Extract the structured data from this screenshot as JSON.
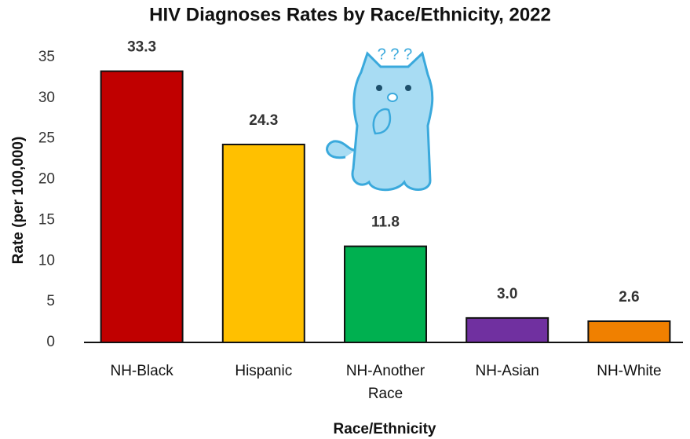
{
  "chart_data": {
    "type": "bar",
    "title": "HIV Diagnoses Rates by Race/Ethnicity, 2022",
    "x_label": "Race/Ethnicity",
    "y_label": "Rate (per 100,000)",
    "categories": [
      "NH-Black",
      "Hispanic",
      "NH-Another Race",
      "NH-Asian",
      "NH-White"
    ],
    "values": [
      33.3,
      24.3,
      11.8,
      3.0,
      2.6
    ],
    "value_labels": [
      "33.3",
      "24.3",
      "11.8",
      "3.0",
      "2.6"
    ],
    "colors": [
      "#c00000",
      "#ffc000",
      "#00b050",
      "#7030a0",
      "#f08000"
    ],
    "ylim": [
      0,
      35
    ],
    "yticks": [
      0,
      5,
      10,
      15,
      20,
      25,
      30,
      35
    ],
    "grid": false,
    "annotation": "? ? ?"
  }
}
